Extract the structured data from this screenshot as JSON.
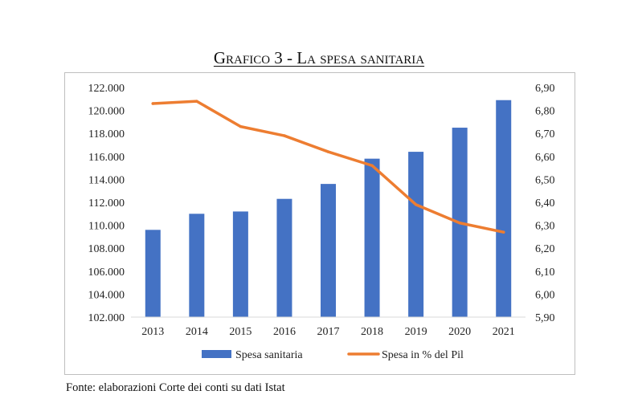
{
  "title": "Grafico 3 - La spesa sanitaria",
  "source": "Fonte: elaborazioni Corte dei conti su dati Istat",
  "colors": {
    "bar": "#4472C4",
    "line": "#ED7D31",
    "axis": "#d9d9d9",
    "text": "#404040"
  },
  "chart_data": {
    "type": "bar",
    "categories": [
      "2013",
      "2014",
      "2015",
      "2016",
      "2017",
      "2018",
      "2019",
      "2020",
      "2021"
    ],
    "series": [
      {
        "name": "Spesa sanitaria",
        "type": "bar",
        "axis": "left",
        "values": [
          109600,
          111000,
          111200,
          112300,
          113600,
          115800,
          116400,
          118500,
          120900
        ]
      },
      {
        "name": "Spesa in % del Pil",
        "type": "line",
        "axis": "right",
        "values": [
          6.83,
          6.84,
          6.73,
          6.69,
          6.62,
          6.56,
          6.39,
          6.31,
          6.27
        ]
      }
    ],
    "y_left": {
      "min": 102000,
      "max": 122000,
      "step": 2000,
      "tick_labels": [
        "102.000",
        "104.000",
        "106.000",
        "108.000",
        "110.000",
        "112.000",
        "114.000",
        "116.000",
        "118.000",
        "120.000",
        "122.000"
      ]
    },
    "y_right": {
      "min": 5.9,
      "max": 6.9,
      "step": 0.1,
      "tick_labels": [
        "5,90",
        "6,00",
        "6,10",
        "6,20",
        "6,30",
        "6,40",
        "6,50",
        "6,60",
        "6,70",
        "6,80",
        "6,90"
      ]
    },
    "grid": false,
    "legend_position": "bottom"
  }
}
